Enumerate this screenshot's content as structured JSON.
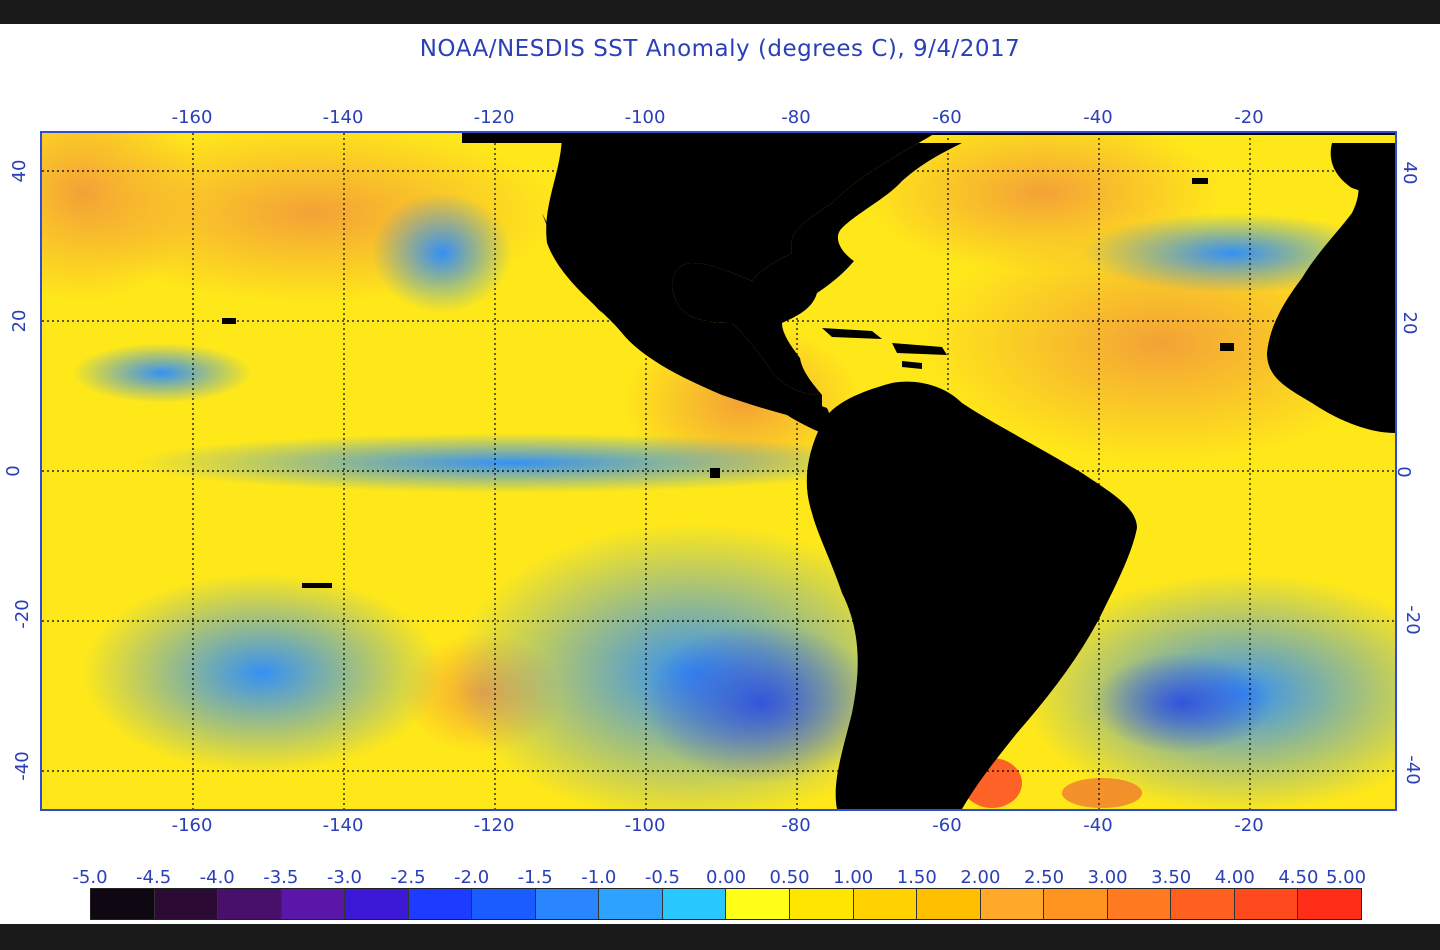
{
  "title": "NOAA/NESDIS SST Anomaly (degrees C), 9/4/2017",
  "map": {
    "lon_ticks": [
      "-160",
      "-140",
      "-120",
      "-100",
      "-80",
      "-60",
      "-40",
      "-20"
    ],
    "lat_ticks": [
      "40",
      "20",
      "0",
      "-20",
      "-40"
    ],
    "extent": {
      "lon_min": -180,
      "lon_max": -1,
      "lat_min": -45,
      "lat_max": 45
    },
    "grid_lines": true,
    "colors": {
      "land": "#000000",
      "frame": "#2f4cd6",
      "warm_anomaly": "#ffee00",
      "strong_warm": "#f4a53a",
      "cool_anomaly": "#3ab0ff",
      "strong_cool": "#2040e0"
    }
  },
  "colorbar": {
    "labels": [
      "-5.0",
      "-4.5",
      "-4.0",
      "-3.5",
      "-3.0",
      "-2.5",
      "-2.0",
      "-1.5",
      "-1.0",
      "-0.5",
      "0.00",
      "0.50",
      "1.00",
      "1.50",
      "2.00",
      "2.50",
      "3.00",
      "3.50",
      "4.00",
      "4.50",
      "5.00"
    ],
    "colors": [
      "#0f0812",
      "#2b0a33",
      "#48106b",
      "#5a16a8",
      "#3a18d6",
      "#1e3cff",
      "#1a5cff",
      "#2a86ff",
      "#2ea2ff",
      "#28c8ff",
      "#ffff18",
      "#ffe600",
      "#ffd200",
      "#ffbe00",
      "#ffa82a",
      "#ff9420",
      "#ff7a20",
      "#ff6020",
      "#ff4a1e",
      "#ff2e18"
    ]
  }
}
